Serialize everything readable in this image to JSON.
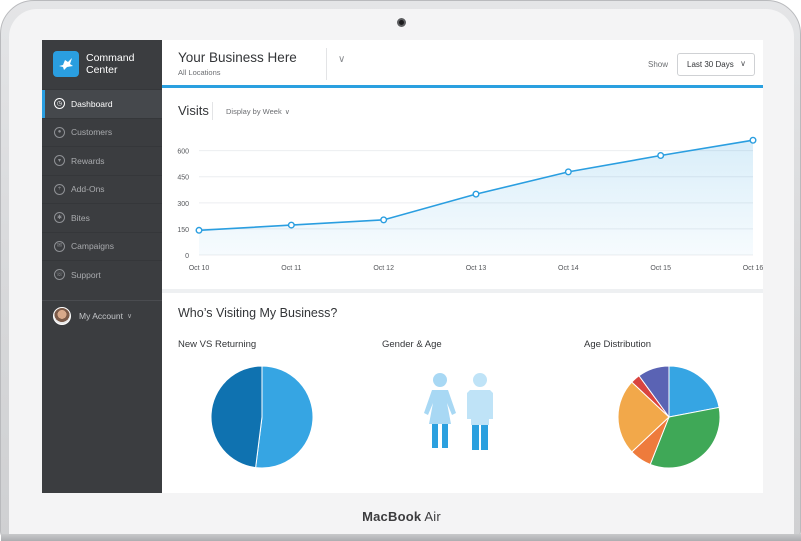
{
  "device": {
    "brand_bold": "MacBook",
    "brand_light": " Air"
  },
  "app": {
    "title": "Command Center",
    "logo_icon": "bird-icon",
    "accent": "#2a9ee0"
  },
  "sidebar": {
    "items": [
      {
        "label": "Dashboard",
        "icon": "dashboard-icon",
        "active": true
      },
      {
        "label": "Customers",
        "icon": "customer-icon",
        "active": false
      },
      {
        "label": "Rewards",
        "icon": "trophy-icon",
        "active": false
      },
      {
        "label": "Add-Ons",
        "icon": "plus-icon",
        "active": false
      },
      {
        "label": "Bites",
        "icon": "bites-icon",
        "active": false
      },
      {
        "label": "Campaigns",
        "icon": "envelope-icon",
        "active": false
      },
      {
        "label": "Support",
        "icon": "chat-icon",
        "active": false
      }
    ],
    "account": {
      "label": "My Account"
    }
  },
  "header": {
    "business_name": "Your Business Here",
    "location": "All Locations",
    "show_label": "Show",
    "range": "Last 30 Days"
  },
  "visits": {
    "title": "Visits",
    "display_by": "Display by Week"
  },
  "chart_data": {
    "type": "area",
    "title": "Visits",
    "categories": [
      "Oct 10",
      "Oct 11",
      "Oct 12",
      "Oct 13",
      "Oct 14",
      "Oct 15",
      "Oct 16"
    ],
    "series": [
      {
        "values": [
          142,
          172,
          202,
          350,
          478,
          572,
          660
        ]
      }
    ],
    "yticks": [
      "0",
      "150",
      "300",
      "450",
      "600"
    ],
    "ylim": [
      0,
      690
    ],
    "line_color": "#2a9ee0",
    "grid": true
  },
  "who": {
    "title": "Who’s Visiting My Business?",
    "new_vs_returning": {
      "title": "New VS Returning",
      "slices": [
        {
          "value": 52,
          "color": "#36a5e3"
        },
        {
          "value": 48,
          "color": "#0f72b0"
        }
      ]
    },
    "gender_age": {
      "title": "Gender & Age",
      "female_color": "#a8d8f4",
      "male_color": "#bfe3f7",
      "legs_color": "#2ba0df"
    },
    "age_distribution": {
      "title": "Age Distribution",
      "slices": [
        {
          "value": 22,
          "color": "#36a5e3"
        },
        {
          "value": 34,
          "color": "#3fa857"
        },
        {
          "value": 7,
          "color": "#ee7b3c"
        },
        {
          "value": 24,
          "color": "#f2a84a"
        },
        {
          "value": 3,
          "color": "#d9443f"
        },
        {
          "value": 10,
          "color": "#5a63b4"
        }
      ]
    }
  }
}
